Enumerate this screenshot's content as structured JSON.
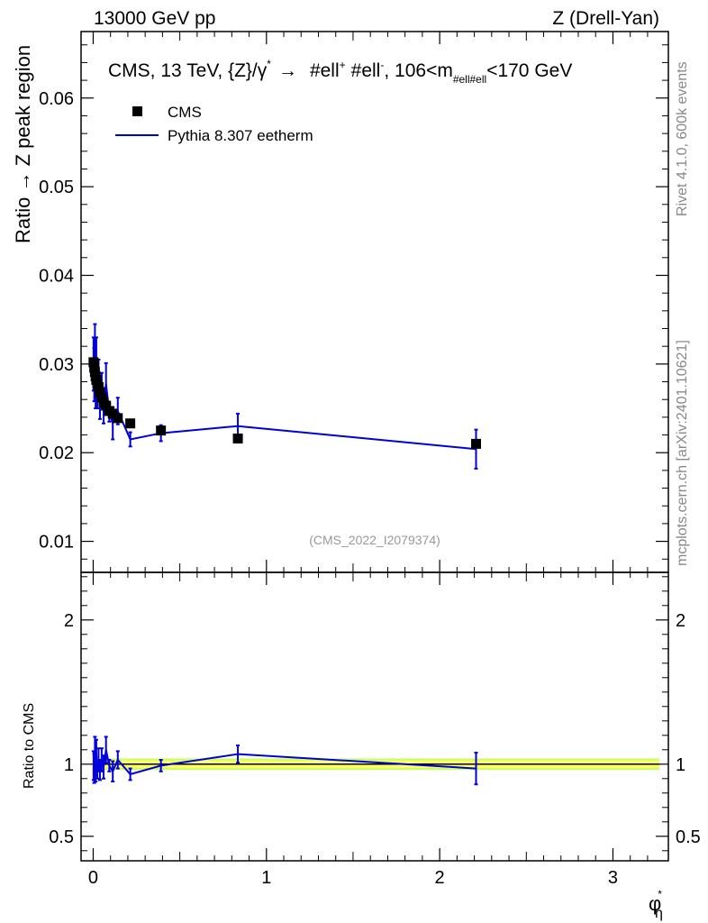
{
  "header": {
    "left": "13000 GeV pp",
    "right": "Z (Drell-Yan)"
  },
  "side_labels": {
    "rivet": "Rivet 4.1.0,  600k events",
    "mcplots": "mcplots.cern.ch [arXiv:2401.10621]"
  },
  "watermark": "(CMS_2022_I2079374)",
  "title": {
    "main": "CMS, 13 TeV, {Z}/γ",
    "star": "*",
    "arrow": "→",
    "ell_plus": "#ell",
    "plus": "+",
    "ell_minus": "#ell",
    "minus": "-",
    "range_prefix": ", 106<m",
    "range_sub": "#ell#ell",
    "range_suffix": "<170 GeV"
  },
  "legend": {
    "data_label": "CMS",
    "mc_label": "Pythia 8.307 eetherm"
  },
  "colors": {
    "data": "#000000",
    "mc": "#0000dd",
    "band_outer": "#ccff66",
    "band_inner": "#ffff66",
    "text_gray": "#888888"
  },
  "chart_data": {
    "type": "scatter",
    "title": "CMS, 13 TeV, {Z}/γ* → #ell+ #ell-, 106<m#ell#ell<170 GeV",
    "xlabel": "φ*η",
    "ylabel": "Ratio → Z peak region",
    "ratio_ylabel": "Ratio to CMS",
    "xlim": [
      -0.07,
      3.32
    ],
    "ylim": [
      0.0065,
      0.0675
    ],
    "ratio_ylim": [
      0.33,
      2.33
    ],
    "x_ticks": [
      0,
      1,
      2,
      3
    ],
    "x_tick_labels": [
      "0",
      "1",
      "2",
      "3"
    ],
    "y_ticks": [
      0.01,
      0.02,
      0.03,
      0.04,
      0.05,
      0.06
    ],
    "y_tick_labels": [
      "0.01",
      "0.02",
      "0.03",
      "0.04",
      "0.05",
      "0.06"
    ],
    "ratio_y_ticks": [
      0.5,
      1,
      2
    ],
    "ratio_y_tick_labels": [
      "0.5",
      "1",
      "2"
    ],
    "series": [
      {
        "name": "CMS",
        "style": "markers",
        "x": [
          0.002,
          0.006,
          0.01,
          0.014,
          0.018,
          0.024,
          0.031,
          0.039,
          0.049,
          0.06,
          0.074,
          0.093,
          0.113,
          0.142,
          0.214,
          0.391,
          0.835,
          2.21
        ],
        "y": [
          0.0302,
          0.0296,
          0.0291,
          0.0286,
          0.0282,
          0.0278,
          0.0274,
          0.0268,
          0.0262,
          0.0257,
          0.0253,
          0.0247,
          0.0244,
          0.0239,
          0.0233,
          0.0225,
          0.0216,
          0.021
        ]
      },
      {
        "name": "Pythia 8.307 eetherm",
        "style": "line",
        "x": [
          0.002,
          0.006,
          0.01,
          0.014,
          0.018,
          0.024,
          0.031,
          0.039,
          0.049,
          0.06,
          0.074,
          0.093,
          0.113,
          0.142,
          0.214,
          0.391,
          0.835,
          2.21
        ],
        "y": [
          0.03,
          0.0288,
          0.0312,
          0.0272,
          0.0305,
          0.0268,
          0.0283,
          0.0258,
          0.027,
          0.0253,
          0.0278,
          0.0245,
          0.0233,
          0.0247,
          0.0215,
          0.0222,
          0.023,
          0.0204
        ],
        "yerr": [
          0.003,
          0.003,
          0.0033,
          0.0022,
          0.0025,
          0.0018,
          0.0022,
          0.002,
          0.002,
          0.002,
          0.0023,
          0.001,
          0.0018,
          0.0015,
          0.0008,
          0.0009,
          0.0014,
          0.0022
        ],
        "ratio": [
          0.99,
          0.97,
          1.07,
          0.95,
          1.08,
          0.96,
          1.03,
          0.96,
          1.03,
          0.98,
          1.1,
          0.99,
          0.95,
          1.03,
          0.93,
          0.99,
          1.07,
          0.97
        ],
        "ratio_err": [
          0.1,
          0.1,
          0.12,
          0.07,
          0.09,
          0.06,
          0.08,
          0.07,
          0.08,
          0.08,
          0.09,
          0.04,
          0.07,
          0.06,
          0.04,
          0.04,
          0.06,
          0.11
        ]
      }
    ],
    "ratio_band": {
      "outer": [
        0.96,
        1.04
      ],
      "inner": [
        0.975,
        1.025
      ]
    }
  }
}
